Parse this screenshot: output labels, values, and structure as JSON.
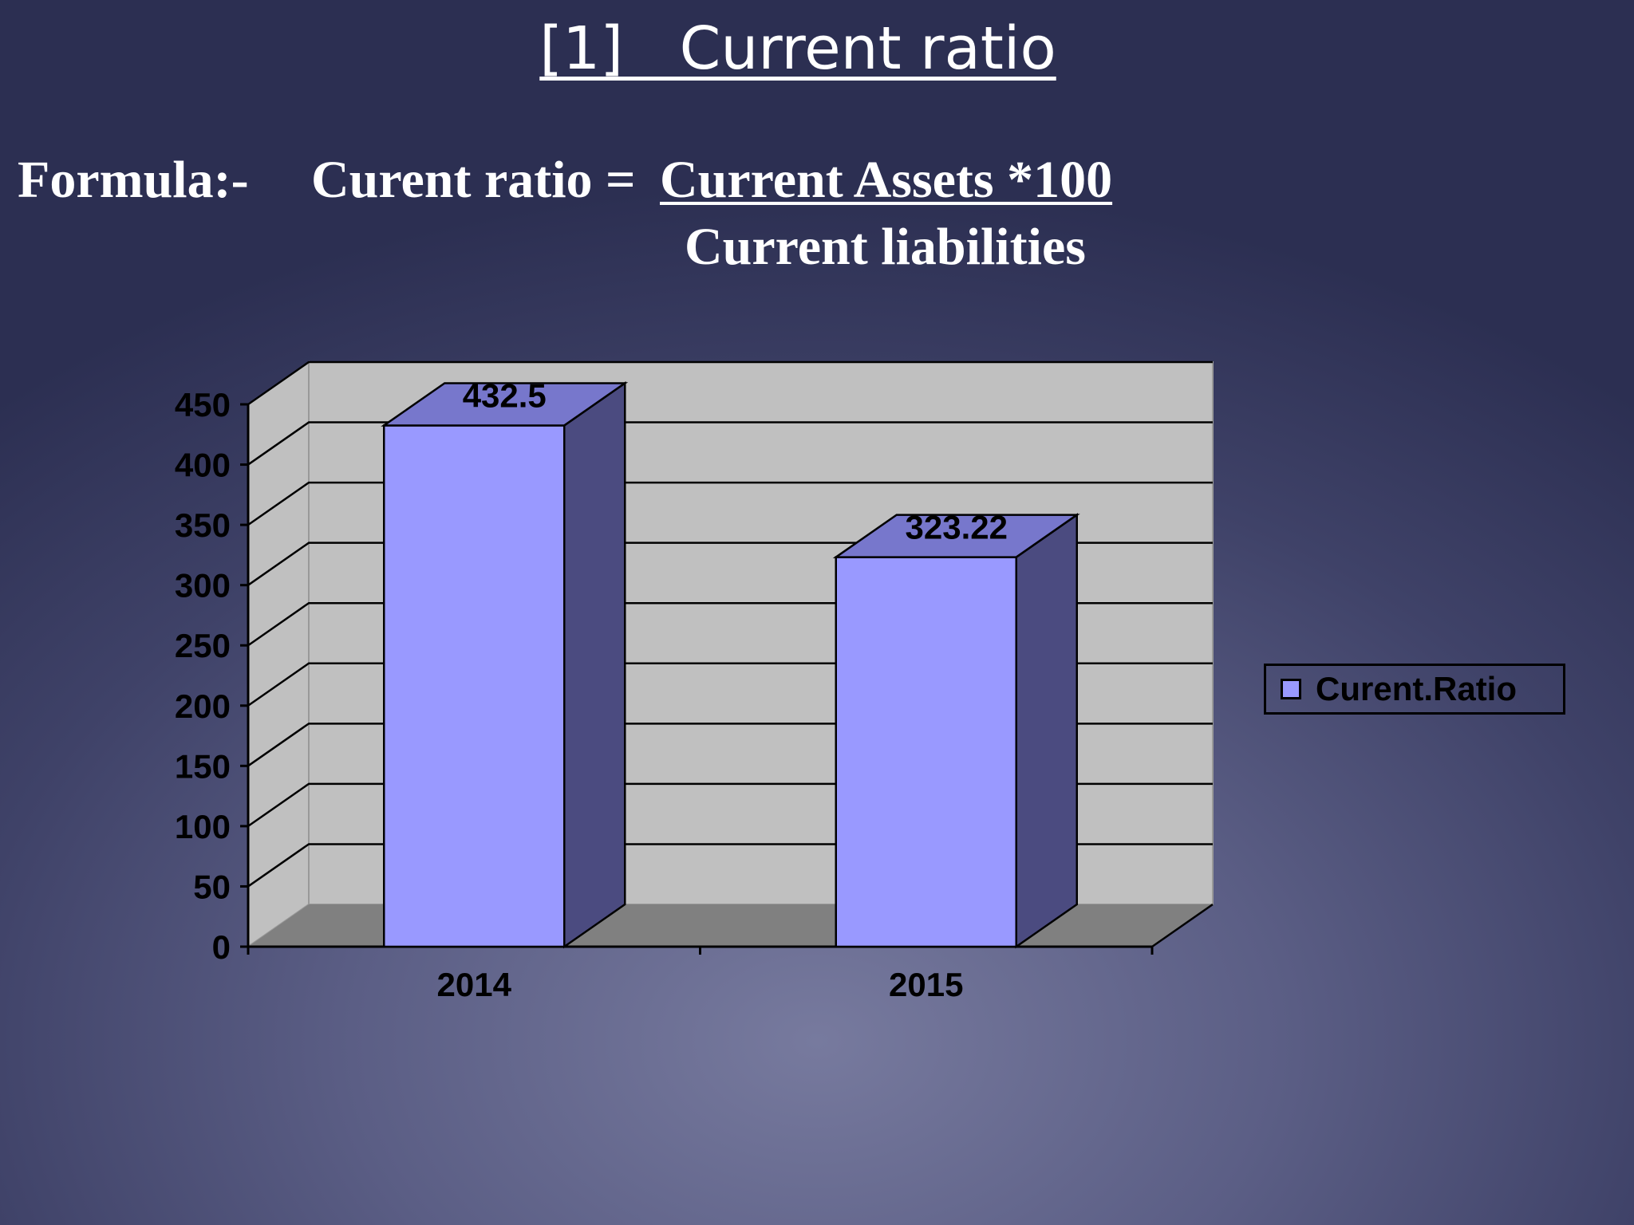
{
  "slide": {
    "title": "[1]   Current ratio",
    "formula_label": "Formula:-",
    "formula_lhs": "Curent ratio = ",
    "formula_numerator": "Current Assets *100",
    "formula_denominator": "Current liabilities"
  },
  "chart_data": {
    "type": "bar",
    "title": "",
    "xlabel": "",
    "ylabel": "",
    "categories": [
      "2014",
      "2015"
    ],
    "series": [
      {
        "name": "Curent.Ratio",
        "values": [
          432.5,
          323.22
        ]
      }
    ],
    "data_labels": [
      "432.5",
      "323.22"
    ],
    "y_ticks": [
      "0",
      "50",
      "100",
      "150",
      "200",
      "250",
      "300",
      "350",
      "400",
      "450"
    ],
    "ylim": [
      0,
      450
    ],
    "grid": true,
    "legend": "right",
    "style": "3d-column",
    "colors": {
      "bar_front": "#9999ff",
      "bar_top": "#7777cc",
      "bar_side": "#4b4b80",
      "wall": "#c0c0c0",
      "floor": "#808080"
    }
  }
}
